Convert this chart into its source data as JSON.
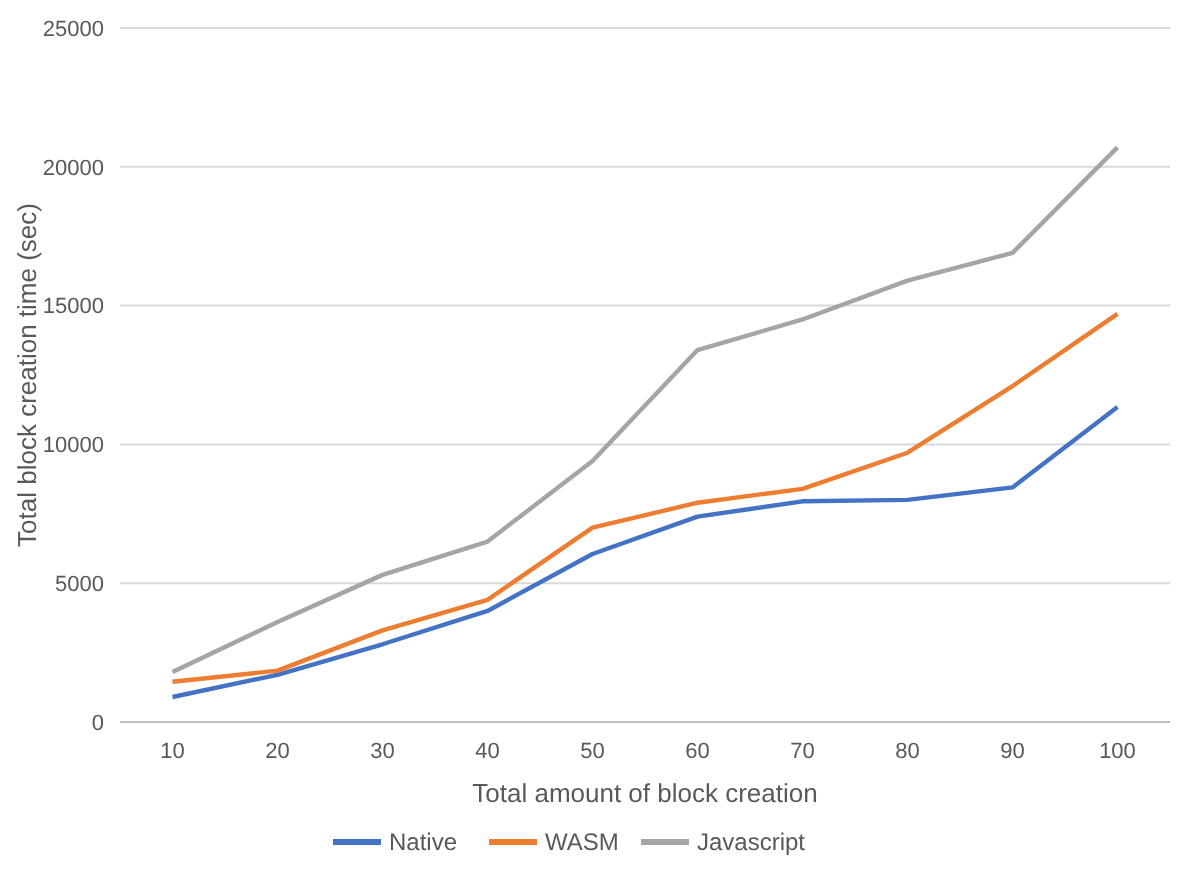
{
  "chart_data": {
    "type": "line",
    "xlabel": "Total amount of block creation",
    "ylabel": "Total block creation time (sec)",
    "categories": [
      "10",
      "20",
      "30",
      "40",
      "50",
      "60",
      "70",
      "80",
      "90",
      "100"
    ],
    "series": [
      {
        "name": "Native",
        "color": "#4472c4",
        "values": [
          900,
          1700,
          2800,
          4000,
          6050,
          7400,
          7950,
          8000,
          8450,
          11350
        ]
      },
      {
        "name": "WASM",
        "color": "#ed7d31",
        "values": [
          1450,
          1850,
          3300,
          4400,
          7000,
          7900,
          8400,
          9700,
          12100,
          14700
        ]
      },
      {
        "name": "Javascript",
        "color": "#a5a5a5",
        "values": [
          1800,
          3600,
          5300,
          6500,
          9400,
          13400,
          14500,
          15900,
          16900,
          20700
        ]
      }
    ],
    "ylim": [
      0,
      25000
    ],
    "yticks": [
      0,
      5000,
      10000,
      15000,
      20000,
      25000
    ],
    "grid": "y",
    "legend": "bottom",
    "marker": "none",
    "line_style": "solid"
  }
}
